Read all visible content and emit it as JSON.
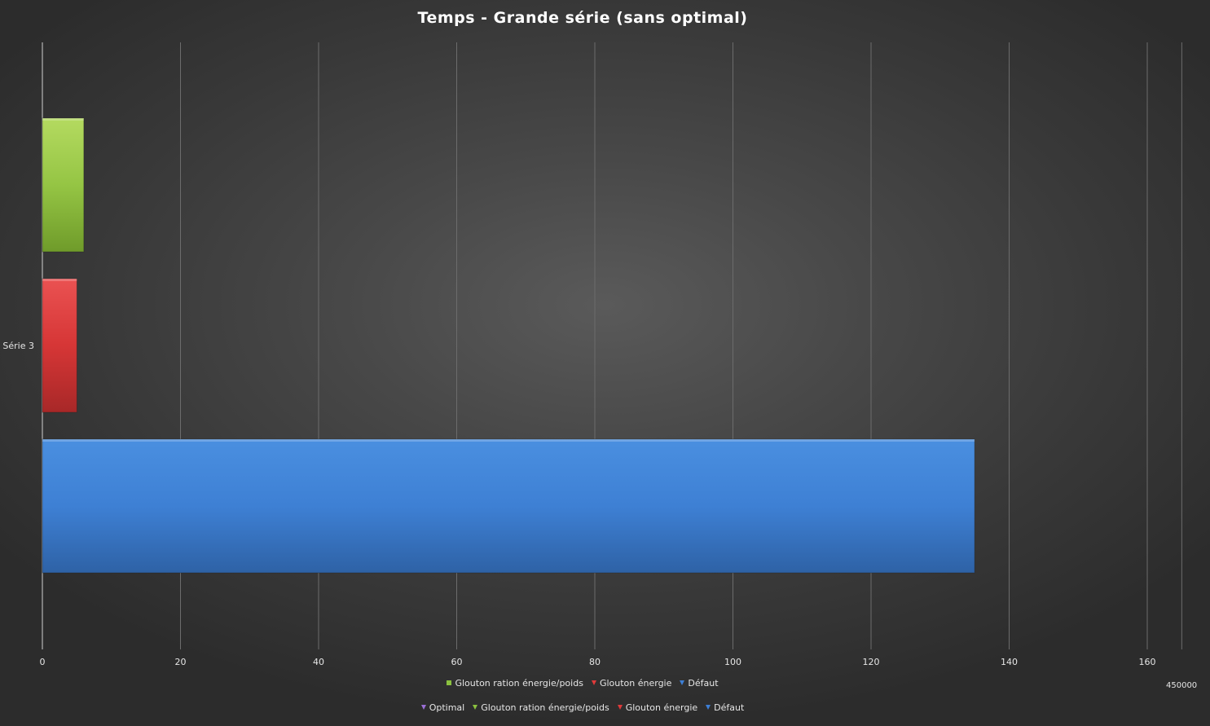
{
  "chart_data": {
    "type": "bar",
    "orientation": "horizontal",
    "title": "Temps - Grande série (sans optimal)",
    "xlabel": "",
    "ylabel": "",
    "xlim": [
      0,
      165
    ],
    "x_ticks": [
      0,
      20,
      40,
      60,
      80,
      100,
      120,
      140,
      160
    ],
    "grid": "vertical",
    "categories": [
      "Série 3"
    ],
    "series": [
      {
        "name": "Glouton ration énergie/poids",
        "color": "#8bc13f",
        "values": [
          6
        ]
      },
      {
        "name": "Glouton énergie",
        "color": "#d93535",
        "values": [
          5
        ]
      },
      {
        "name": "Défaut",
        "color": "#3d7fd6",
        "values": [
          135
        ]
      }
    ],
    "legend": {
      "placement": "bottom",
      "row1": [
        {
          "label": "Glouton ration énergie/poids",
          "color": "#8bc13f",
          "marker": "square"
        },
        {
          "label": "Glouton énergie",
          "color": "#e03a3a",
          "marker": "triangle"
        },
        {
          "label": "Défaut",
          "color": "#3d7fd6",
          "marker": "triangle"
        }
      ],
      "row2": [
        {
          "label": "Optimal",
          "color": "#9b6fd6",
          "marker": "triangle"
        },
        {
          "label": "Glouton ration énergie/poids",
          "color": "#8bc13f",
          "marker": "triangle"
        },
        {
          "label": "Glouton énergie",
          "color": "#e03a3a",
          "marker": "triangle"
        },
        {
          "label": "Défaut",
          "color": "#3d7fd6",
          "marker": "triangle"
        }
      ]
    },
    "extra_axis_label": "450000"
  }
}
